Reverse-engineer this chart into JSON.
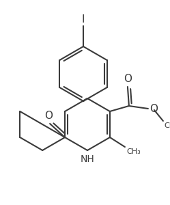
{
  "line_color": "#3a3a3a",
  "bg_color": "#ffffff",
  "line_width": 1.5,
  "figsize": [
    2.49,
    3.0
  ],
  "dpi": 100,
  "xlim": [
    0,
    249
  ],
  "ylim": [
    0,
    300
  ]
}
